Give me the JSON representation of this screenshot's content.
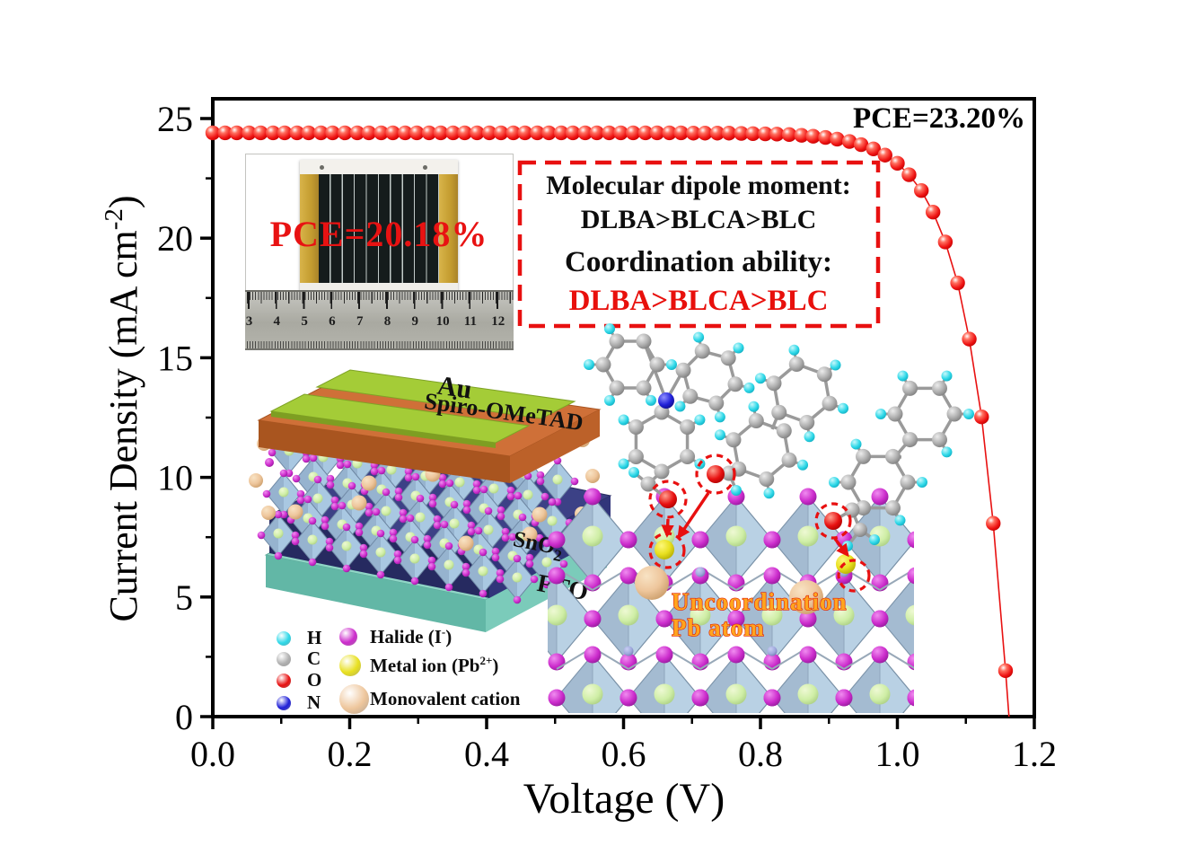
{
  "chart_data": {
    "type": "line",
    "title": "",
    "xlabel": "Voltage (V)",
    "ylabel": {
      "pre": "Current Density (mA cm",
      "sup": "-2",
      "post": ")"
    },
    "xlim": [
      0,
      1.2
    ],
    "ylim": [
      0,
      25
    ],
    "grid": false,
    "legend_position": "none",
    "x_ticks": [
      {
        "v": 0.0,
        "label": "0.0"
      },
      {
        "v": 0.2,
        "label": "0.2"
      },
      {
        "v": 0.4,
        "label": "0.4"
      },
      {
        "v": 0.6,
        "label": "0.6"
      },
      {
        "v": 0.8,
        "label": "0.8"
      },
      {
        "v": 1.0,
        "label": "1.0"
      },
      {
        "v": 1.2,
        "label": "1.2"
      }
    ],
    "x_minor_ticks": [
      0.1,
      0.3,
      0.5,
      0.7,
      0.9,
      1.1
    ],
    "y_ticks": [
      {
        "v": 0,
        "label": "0"
      },
      {
        "v": 5,
        "label": "5"
      },
      {
        "v": 10,
        "label": "10"
      },
      {
        "v": 15,
        "label": "15"
      },
      {
        "v": 20,
        "label": "20"
      },
      {
        "v": 25,
        "label": "25"
      }
    ],
    "y_minor_ticks": [
      2.5,
      7.5,
      12.5,
      17.5,
      22.5
    ],
    "annotations": [
      {
        "text": "PCE=23.20%",
        "position": "top-right"
      }
    ],
    "series": [
      {
        "name": "J-V curve",
        "color": "#e81111",
        "marker": "sphere",
        "points": [
          [
            0.0,
            24.4
          ],
          [
            0.018,
            24.4
          ],
          [
            0.035,
            24.4
          ],
          [
            0.053,
            24.4
          ],
          [
            0.07,
            24.4
          ],
          [
            0.088,
            24.4
          ],
          [
            0.105,
            24.4
          ],
          [
            0.123,
            24.4
          ],
          [
            0.14,
            24.4
          ],
          [
            0.158,
            24.4
          ],
          [
            0.175,
            24.4
          ],
          [
            0.193,
            24.4
          ],
          [
            0.211,
            24.4
          ],
          [
            0.228,
            24.4
          ],
          [
            0.246,
            24.4
          ],
          [
            0.263,
            24.4
          ],
          [
            0.281,
            24.4
          ],
          [
            0.298,
            24.4
          ],
          [
            0.316,
            24.4
          ],
          [
            0.333,
            24.4
          ],
          [
            0.351,
            24.4
          ],
          [
            0.368,
            24.4
          ],
          [
            0.386,
            24.4
          ],
          [
            0.404,
            24.4
          ],
          [
            0.421,
            24.4
          ],
          [
            0.439,
            24.4
          ],
          [
            0.456,
            24.4
          ],
          [
            0.474,
            24.4
          ],
          [
            0.491,
            24.4
          ],
          [
            0.509,
            24.4
          ],
          [
            0.526,
            24.4
          ],
          [
            0.544,
            24.4
          ],
          [
            0.561,
            24.4
          ],
          [
            0.579,
            24.4
          ],
          [
            0.596,
            24.4
          ],
          [
            0.614,
            24.4
          ],
          [
            0.632,
            24.4
          ],
          [
            0.649,
            24.4
          ],
          [
            0.667,
            24.4
          ],
          [
            0.684,
            24.4
          ],
          [
            0.702,
            24.39
          ],
          [
            0.719,
            24.39
          ],
          [
            0.737,
            24.39
          ],
          [
            0.754,
            24.39
          ],
          [
            0.772,
            24.38
          ],
          [
            0.789,
            24.37
          ],
          [
            0.807,
            24.36
          ],
          [
            0.824,
            24.35
          ],
          [
            0.842,
            24.33
          ],
          [
            0.86,
            24.3
          ],
          [
            0.877,
            24.26
          ],
          [
            0.895,
            24.21
          ],
          [
            0.912,
            24.14
          ],
          [
            0.93,
            24.04
          ],
          [
            0.947,
            23.91
          ],
          [
            0.965,
            23.73
          ],
          [
            0.982,
            23.47
          ],
          [
            1.0,
            23.13
          ],
          [
            1.017,
            22.65
          ],
          [
            1.035,
            21.99
          ],
          [
            1.052,
            21.09
          ],
          [
            1.07,
            19.84
          ],
          [
            1.088,
            18.13
          ],
          [
            1.105,
            15.78
          ],
          [
            1.123,
            12.53
          ],
          [
            1.14,
            8.08
          ],
          [
            1.158,
            1.92
          ]
        ],
        "line_end": [
          1.163,
          0
        ]
      }
    ]
  },
  "figure": {
    "pce_annotation": "PCE=23.20%",
    "photo_inset": {
      "overlay_text": "PCE=20.18%",
      "overlay_color": "#e81212",
      "ruler_numbers": [
        "3",
        "4",
        "5",
        "6",
        "7",
        "8",
        "9",
        "10",
        "11",
        "12"
      ]
    },
    "callout_box": {
      "border_color": "#e81010",
      "lines": [
        {
          "text": "Molecular dipole moment:",
          "color": "#0d0d0d"
        },
        {
          "text": "DLBA>BLCA>BLC",
          "color": "#0d0d0d"
        },
        {
          "text": "Coordination ability:",
          "color": "#0d0d0d"
        },
        {
          "text": "DLBA>BLCA>BLC",
          "color": "#e8100c"
        }
      ]
    },
    "device_stack": {
      "au_label": "Au",
      "spiro_label": "Spiro-OMeTAD",
      "sno2_label": {
        "pre": "SnO",
        "sub": "2"
      },
      "fto_label": "FTO"
    },
    "lattice_callout": {
      "line1": "Uncoordination",
      "line2": "Pb atom",
      "color": "#ffa51e",
      "outline": "#e02008"
    },
    "legend": {
      "atoms": [
        {
          "label": "H",
          "color": "#2ed8e8"
        },
        {
          "label": "C",
          "color": "#b0b0b0"
        },
        {
          "label": "O",
          "color": "#e81111"
        },
        {
          "label": "N",
          "color": "#2020d8"
        }
      ],
      "species": [
        {
          "pre": "Halide (I",
          "sup": "-",
          "post": ")",
          "color": "#cc2ccc"
        },
        {
          "pre": "Metal ion (Pb",
          "sup": "2+",
          "post": ")",
          "color": "#e8e020"
        },
        {
          "pre": "Monovalent cation",
          "sup": "",
          "post": "",
          "color": "#eec69c"
        }
      ]
    }
  }
}
